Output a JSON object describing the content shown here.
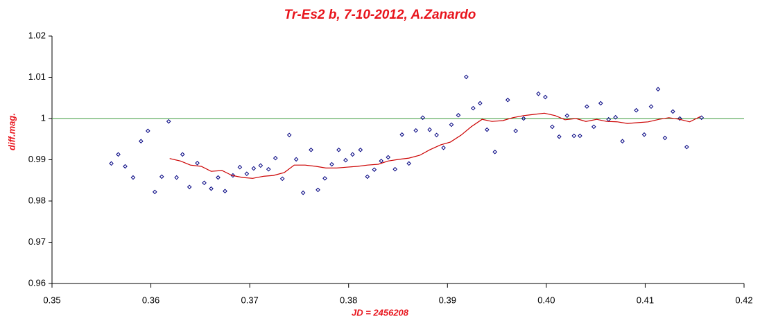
{
  "chart_data": {
    "type": "scatter",
    "title": "Tr-Es2 b, 7-10-2012, A.Zanardo",
    "x_label": "JD = 2456208",
    "y_label": "diff.mag.",
    "xlim": [
      0.35,
      0.42
    ],
    "xticks": [
      0.35,
      0.36,
      0.37,
      0.38,
      0.39,
      {
        "value": 0.4,
        "label": "0.40"
      },
      0.41,
      0.42
    ],
    "ylim": [
      0.96,
      1.02
    ],
    "yticks": [
      0.96,
      0.97,
      0.98,
      0.99,
      1,
      1.01,
      1.02
    ],
    "reference_line": {
      "value": 1,
      "color": "#3a9a3a"
    },
    "series": [
      {
        "style": "markers",
        "color": "#000080",
        "x": [
          0.356,
          0.3567,
          0.3574,
          0.3582,
          0.359,
          0.3597,
          0.3604,
          0.3611,
          0.3618,
          0.3626,
          0.3632,
          0.3639,
          0.3647,
          0.3654,
          0.3661,
          0.3668,
          0.3675,
          0.3683,
          0.369,
          0.3697,
          0.3704,
          0.3711,
          0.3719,
          0.3726,
          0.3733,
          0.374,
          0.3747,
          0.3754,
          0.3762,
          0.3769,
          0.3776,
          0.3783,
          0.379,
          0.3797,
          0.3804,
          0.3812,
          0.3819,
          0.3826,
          0.3833,
          0.384,
          0.3847,
          0.3854,
          0.3861,
          0.3868,
          0.3875,
          0.3882,
          0.3889,
          0.3896,
          0.3904,
          0.3911,
          0.3919,
          0.3926,
          0.3933,
          0.394,
          0.3948,
          0.3961,
          0.3969,
          0.3977,
          0.3992,
          0.3999,
          0.4006,
          0.4013,
          0.4021,
          0.4028,
          0.4034,
          0.4041,
          0.4048,
          0.4055,
          0.4063,
          0.407,
          0.4077,
          0.4091,
          0.4099,
          0.4106,
          0.4113,
          0.412,
          0.4128,
          0.4135,
          0.4142,
          0.4157
        ],
        "values": [
          0.9891,
          0.9913,
          0.9884,
          0.9857,
          0.9945,
          0.997,
          0.9822,
          0.9859,
          0.9993,
          0.9857,
          0.9913,
          0.9834,
          0.9892,
          0.9844,
          0.983,
          0.9857,
          0.9824,
          0.9862,
          0.9882,
          0.9866,
          0.9879,
          0.9886,
          0.9877,
          0.9904,
          0.9854,
          0.996,
          0.9901,
          0.982,
          0.9924,
          0.9827,
          0.9855,
          0.9889,
          0.9924,
          0.9899,
          0.9913,
          0.9924,
          0.9859,
          0.9876,
          0.9897,
          0.9906,
          0.9877,
          0.9961,
          0.9891,
          0.9971,
          1.0002,
          0.9973,
          0.996,
          0.9929,
          0.9985,
          1.0008,
          1.0101,
          1.0025,
          1.0037,
          0.9973,
          0.9919,
          1.0045,
          0.997,
          1.0,
          1.006,
          1.0052,
          0.998,
          0.9956,
          1.0007,
          0.9958,
          0.9958,
          1.0029,
          0.998,
          1.0037,
          0.9998,
          1.0003,
          0.9945,
          1.002,
          0.9961,
          1.0029,
          1.0071,
          0.9953,
          1.0017,
          1.0,
          0.9931,
          1.0002
        ]
      },
      {
        "style": "line",
        "color": "#cc0000",
        "x": [
          0.3619,
          0.363,
          0.364,
          0.3651,
          0.3661,
          0.3672,
          0.3682,
          0.3693,
          0.3703,
          0.3714,
          0.3724,
          0.3735,
          0.3745,
          0.3756,
          0.3767,
          0.3777,
          0.3788,
          0.3798,
          0.3809,
          0.3819,
          0.383,
          0.384,
          0.3851,
          0.3861,
          0.3872,
          0.3882,
          0.3893,
          0.3903,
          0.3914,
          0.3924,
          0.3935,
          0.3945,
          0.3956,
          0.3966,
          0.3977,
          0.3987,
          0.3998,
          0.4009,
          0.4019,
          0.403,
          0.404,
          0.4051,
          0.4061,
          0.4072,
          0.4082,
          0.4093,
          0.4103,
          0.4114,
          0.4124,
          0.4135,
          0.4145,
          0.4156
        ],
        "values": [
          0.9903,
          0.9897,
          0.9887,
          0.9884,
          0.9872,
          0.9874,
          0.9862,
          0.9857,
          0.9855,
          0.986,
          0.9862,
          0.9869,
          0.9887,
          0.9887,
          0.9884,
          0.988,
          0.988,
          0.9882,
          0.9884,
          0.9887,
          0.9889,
          0.9897,
          0.9901,
          0.9904,
          0.9911,
          0.9924,
          0.9936,
          0.9943,
          0.996,
          0.998,
          0.9998,
          0.9993,
          0.9995,
          1.0002,
          1.0007,
          1.001,
          1.0013,
          1.0007,
          0.9997,
          1.0,
          0.9993,
          0.9998,
          0.9993,
          0.9992,
          0.9988,
          0.999,
          0.9992,
          0.9998,
          1.0002,
          0.9998,
          0.9992,
          1.0005
        ]
      }
    ]
  }
}
